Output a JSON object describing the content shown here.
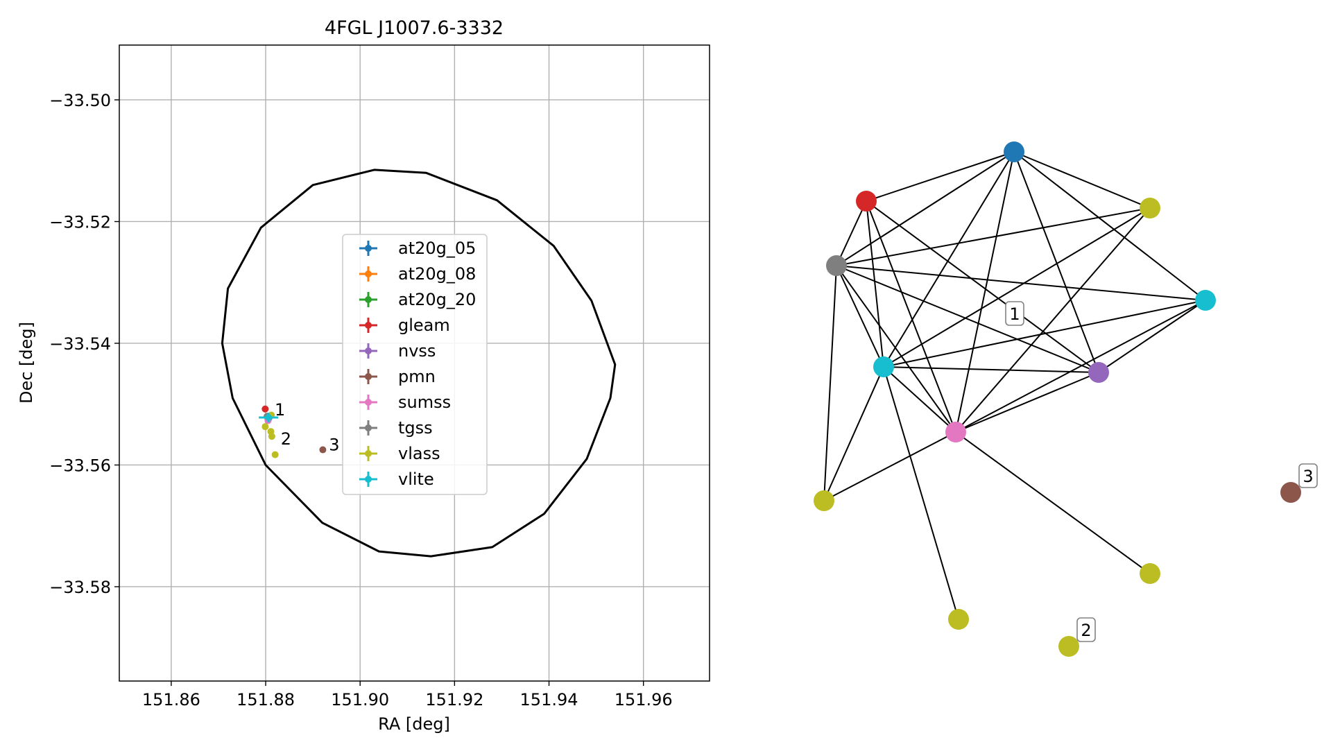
{
  "chart_data": [
    {
      "type": "scatter",
      "title": "4FGL J1007.6-3332",
      "xlabel": "RA [deg]",
      "ylabel": "Dec [deg]",
      "xlim": [
        151.849,
        151.974
      ],
      "ylim": [
        -33.5955,
        -33.491
      ],
      "xticks": [
        151.86,
        151.88,
        151.9,
        151.92,
        151.94,
        151.96
      ],
      "xtick_labels": [
        "151.86",
        "151.88",
        "151.90",
        "151.92",
        "151.94",
        "151.96"
      ],
      "yticks": [
        -33.5,
        -33.52,
        -33.54,
        -33.56,
        -33.58
      ],
      "ytick_labels": [
        "−33.50",
        "−33.52",
        "−33.54",
        "−33.56",
        "−33.58"
      ],
      "grid": true,
      "legend_position": "center",
      "ellipse": {
        "center": [
          151.9115,
          -33.5433
        ],
        "color": "#000000",
        "points": [
          [
            151.954,
            -33.5435
          ],
          [
            151.953,
            -33.549
          ],
          [
            151.948,
            -33.559
          ],
          [
            151.939,
            -33.568
          ],
          [
            151.928,
            -33.5735
          ],
          [
            151.915,
            -33.575
          ],
          [
            151.904,
            -33.5742
          ],
          [
            151.892,
            -33.5695
          ],
          [
            151.88,
            -33.56
          ],
          [
            151.873,
            -33.549
          ],
          [
            151.8708,
            -33.54
          ],
          [
            151.872,
            -33.531
          ],
          [
            151.879,
            -33.521
          ],
          [
            151.89,
            -33.514
          ],
          [
            151.903,
            -33.5115
          ],
          [
            151.914,
            -33.512
          ],
          [
            151.929,
            -33.5165
          ],
          [
            151.941,
            -33.524
          ],
          [
            151.949,
            -33.533
          ],
          [
            151.954,
            -33.5435
          ]
        ]
      },
      "series": [
        {
          "name": "at20g_05",
          "color": "#1f77b4",
          "points": [
            [
              151.8805,
              -33.5525
            ]
          ]
        },
        {
          "name": "at20g_08",
          "color": "#ff7f0e",
          "points": [
            [
              151.8805,
              -33.5525
            ]
          ]
        },
        {
          "name": "at20g_20",
          "color": "#2ca02c",
          "points": [
            [
              151.8805,
              -33.5525
            ]
          ]
        },
        {
          "name": "gleam",
          "color": "#d62728",
          "points": [
            [
              151.8799,
              -33.5508
            ]
          ]
        },
        {
          "name": "nvss",
          "color": "#9467bd",
          "points": [
            [
              151.8807,
              -33.5523
            ]
          ]
        },
        {
          "name": "pmn",
          "color": "#8c564b",
          "points": [
            [
              151.8921,
              -33.5575
            ]
          ]
        },
        {
          "name": "sumss",
          "color": "#e377c2",
          "points": [
            [
              151.8805,
              -33.5527
            ]
          ]
        },
        {
          "name": "tgss",
          "color": "#7f7f7f",
          "points": [
            [
              151.8803,
              -33.552
            ]
          ]
        },
        {
          "name": "vlass",
          "color": "#bcbd22",
          "points": [
            [
              151.8812,
              -33.5518
            ],
            [
              151.8799,
              -33.5537
            ],
            [
              151.8811,
              -33.5545
            ],
            [
              151.8813,
              -33.5553
            ],
            [
              151.882,
              -33.5583
            ]
          ]
        },
        {
          "name": "vlite",
          "color": "#17becf",
          "points": [
            [
              151.8806,
              -33.5522
            ]
          ]
        }
      ],
      "annotations": [
        {
          "text": "1",
          "x": 151.8816,
          "y": -33.5508
        },
        {
          "text": "2",
          "x": 151.8829,
          "y": -33.5556
        },
        {
          "text": "3",
          "x": 151.8931,
          "y": -33.5566
        }
      ]
    },
    {
      "type": "network",
      "nodes": [
        {
          "id": "at20g",
          "color": "#1f77b4"
        },
        {
          "id": "gleam",
          "color": "#d62728"
        },
        {
          "id": "vlass_a",
          "color": "#bcbd22"
        },
        {
          "id": "tgss",
          "color": "#7f7f7f"
        },
        {
          "id": "vlite_b",
          "color": "#17becf"
        },
        {
          "id": "vlite_a",
          "color": "#17becf"
        },
        {
          "id": "nvss",
          "color": "#9467bd"
        },
        {
          "id": "sumss",
          "color": "#e377c2"
        },
        {
          "id": "vlass_b",
          "color": "#bcbd22"
        },
        {
          "id": "vlass_c",
          "color": "#bcbd22"
        },
        {
          "id": "vlass_d",
          "color": "#bcbd22"
        },
        {
          "id": "vlass_e",
          "color": "#bcbd22"
        },
        {
          "id": "pmn",
          "color": "#8c564b"
        }
      ],
      "edges": [
        [
          "at20g",
          "gleam"
        ],
        [
          "at20g",
          "vlass_a"
        ],
        [
          "at20g",
          "tgss"
        ],
        [
          "at20g",
          "vlite_b"
        ],
        [
          "at20g",
          "vlite_a"
        ],
        [
          "at20g",
          "nvss"
        ],
        [
          "at20g",
          "sumss"
        ],
        [
          "gleam",
          "tgss"
        ],
        [
          "gleam",
          "vlite_a"
        ],
        [
          "gleam",
          "sumss"
        ],
        [
          "gleam",
          "nvss"
        ],
        [
          "tgss",
          "vlass_a"
        ],
        [
          "tgss",
          "vlite_b"
        ],
        [
          "tgss",
          "nvss"
        ],
        [
          "tgss",
          "sumss"
        ],
        [
          "tgss",
          "vlite_a"
        ],
        [
          "tgss",
          "vlass_b"
        ],
        [
          "vlass_a",
          "vlite_a"
        ],
        [
          "vlass_a",
          "sumss"
        ],
        [
          "vlite_b",
          "nvss"
        ],
        [
          "vlite_b",
          "sumss"
        ],
        [
          "vlite_b",
          "vlite_a"
        ],
        [
          "vlite_a",
          "nvss"
        ],
        [
          "vlite_a",
          "sumss"
        ],
        [
          "vlite_a",
          "vlass_b"
        ],
        [
          "vlite_a",
          "vlass_d"
        ],
        [
          "nvss",
          "sumss"
        ],
        [
          "sumss",
          "vlass_b"
        ],
        [
          "sumss",
          "vlass_c"
        ]
      ],
      "groups": [
        {
          "label": "1",
          "anchor_node": "vlite_a"
        },
        {
          "label": "2",
          "anchor_node": "vlass_e"
        },
        {
          "label": "3",
          "anchor_node": "pmn"
        }
      ]
    }
  ]
}
